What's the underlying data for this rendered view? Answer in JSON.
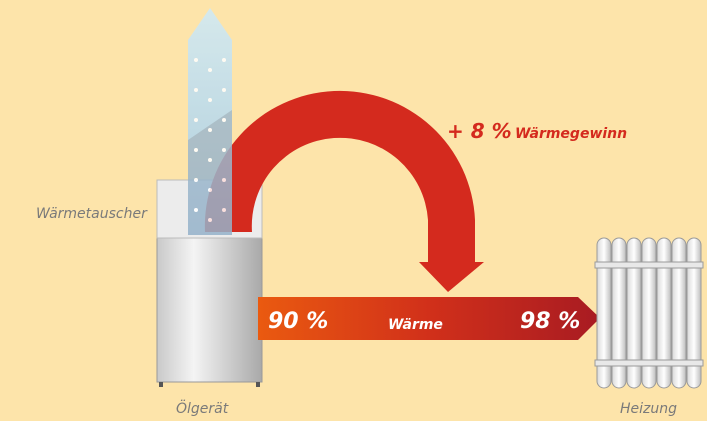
{
  "labels": {
    "gain_percent": "+ 8 %",
    "gain_text": "Wärmegewinn",
    "heat_exchanger": "Wärmetauscher",
    "start_percent": "90 %",
    "flow_text": "Wärme",
    "end_percent": "98 %",
    "boiler": "Ölgerät",
    "heating": "Heizung"
  }
}
